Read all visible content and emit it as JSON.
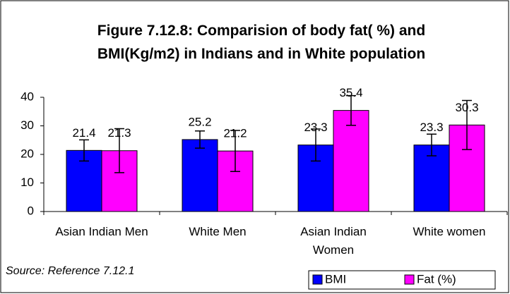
{
  "chart_data": {
    "type": "bar",
    "title": "Figure 7.12.8: Comparision of body fat( %) and BMI(Kg/m2) in Indians and in White population",
    "source": "Source: Reference 7.12.1",
    "categories": [
      "Asian Indian Men",
      "White Men",
      "Asian Indian Women",
      "White women"
    ],
    "series": [
      {
        "name": "BMI",
        "color": "#0000ff",
        "values": [
          21.4,
          25.2,
          23.3,
          23.3
        ],
        "errors": [
          3.7,
          3,
          5.6,
          3.8
        ]
      },
      {
        "name": "Fat (%)",
        "color": "#ff00ff",
        "values": [
          21.3,
          21.2,
          35.4,
          30.3
        ],
        "errors": [
          7.7,
          7.2,
          5.2,
          8.6
        ]
      }
    ],
    "ylim": [
      0,
      40
    ],
    "yticks": [
      0,
      10,
      20,
      30,
      40
    ],
    "grid": false,
    "legend": "bottom-right"
  }
}
